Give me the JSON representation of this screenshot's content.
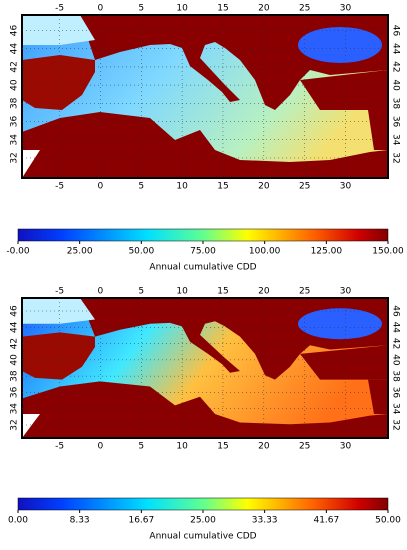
{
  "panels": [
    {
      "lon_ticks": [
        -5,
        0,
        5,
        10,
        15,
        20,
        25,
        30
      ],
      "lat_ticks": [
        32,
        34,
        36,
        38,
        40,
        42,
        44,
        46
      ],
      "lon_range": [
        -9.6,
        35.2
      ],
      "lat_range": [
        29.8,
        47.7
      ],
      "colorbar": {
        "range": [
          0,
          150
        ],
        "label": "Annual cumulative CDD",
        "ticks": [
          {
            "value": 0,
            "label": "-0.00"
          },
          {
            "value": 25,
            "label": "25.00"
          },
          {
            "value": 50,
            "label": "50.00"
          },
          {
            "value": 75,
            "label": "75.00"
          },
          {
            "value": 100,
            "label": "100.00"
          },
          {
            "value": 125,
            "label": "125.00"
          },
          {
            "value": 150,
            "label": "150.00"
          }
        ]
      }
    },
    {
      "lon_ticks": [
        -5,
        0,
        5,
        10,
        15,
        20,
        25,
        30
      ],
      "lat_ticks": [
        32,
        34,
        36,
        38,
        40,
        42,
        44,
        46
      ],
      "lon_range": [
        -9.6,
        35.2
      ],
      "lat_range": [
        30.4,
        47.6
      ],
      "colorbar": {
        "range": [
          0,
          50
        ],
        "label": "Annual cumulative CDD",
        "ticks": [
          {
            "value": 0,
            "label": "0.00"
          },
          {
            "value": 8.33,
            "label": "8.33"
          },
          {
            "value": 16.67,
            "label": "16.67"
          },
          {
            "value": 25,
            "label": "25.00"
          },
          {
            "value": 33.33,
            "label": "33.33"
          },
          {
            "value": 41.67,
            "label": "41.67"
          },
          {
            "value": 50,
            "label": "50.00"
          }
        ]
      }
    }
  ]
}
